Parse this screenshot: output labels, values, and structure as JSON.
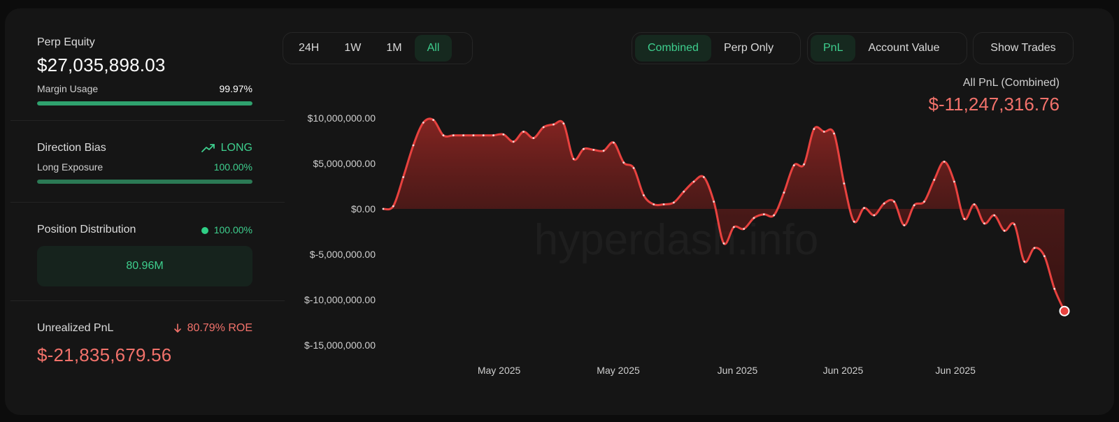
{
  "sidebar": {
    "equity_label": "Perp Equity",
    "equity_value": "$27,035,898.03",
    "margin_label": "Margin Usage",
    "margin_value": "99.97%",
    "margin_fraction": 0.9997,
    "bias_label": "Direction Bias",
    "bias_value": "LONG",
    "exposure_label": "Long Exposure",
    "exposure_value": "100.00%",
    "exposure_fraction": 1.0,
    "distribution_label": "Position Distribution",
    "distribution_value": "100.00%",
    "distribution_amount": "80.96M",
    "upnl_label": "Unrealized PnL",
    "upnl_roe": "80.79% ROE",
    "upnl_value": "$-21,835,679.56"
  },
  "toolbar": {
    "ranges": [
      "24H",
      "1W",
      "1M",
      "All"
    ],
    "active_range": "All",
    "modes": [
      "Combined",
      "Perp Only"
    ],
    "active_mode": "Combined",
    "metrics": [
      "PnL",
      "Account Value"
    ],
    "active_metric": "PnL",
    "show_trades_label": "Show Trades"
  },
  "summary": {
    "label": "All PnL (Combined)",
    "value": "$-11,247,316.76"
  },
  "watermark": "hyperdash.info",
  "colors": {
    "accent_green": "#3ecf8e",
    "negative_red": "#f2726b",
    "line_red": "#e8423f"
  },
  "chart_data": {
    "type": "area",
    "title": "",
    "xlabel": "",
    "ylabel": "",
    "ylim": [
      -15000000,
      10000000
    ],
    "yticks": [
      10000000,
      5000000,
      0,
      -5000000,
      -10000000,
      -15000000
    ],
    "ytick_labels": [
      "$10,000,000.00",
      "$5,000,000.00",
      "$0.00",
      "$-5,000,000.00",
      "$-10,000,000.00",
      "$-15,000,000.00"
    ],
    "xtick_labels": [
      "May 2025",
      "May 2025",
      "Jun 2025",
      "Jun 2025",
      "Jun 2025"
    ],
    "series": [
      {
        "values": [
          0,
          300000,
          3500000,
          7000000,
          9500000,
          9800000,
          8100000,
          8100000,
          8100000,
          8100000,
          8100000,
          8100000,
          8200000,
          7400000,
          8500000,
          7800000,
          9000000,
          9300000,
          9400000,
          5500000,
          6600000,
          6500000,
          6400000,
          7300000,
          5100000,
          4500000,
          1500000,
          500000,
          500000,
          700000,
          1900000,
          3000000,
          3500000,
          800000,
          -3800000,
          -2000000,
          -2200000,
          -1000000,
          -600000,
          -700000,
          1800000,
          4800000,
          4900000,
          8800000,
          8500000,
          8300000,
          2800000,
          -1400000,
          100000,
          -700000,
          600000,
          800000,
          -1800000,
          400000,
          800000,
          3200000,
          5200000,
          3000000,
          -1100000,
          500000,
          -1600000,
          -700000,
          -2400000,
          -1700000,
          -5800000,
          -4300000,
          -5200000,
          -8800000,
          -11247316.76
        ]
      }
    ]
  }
}
